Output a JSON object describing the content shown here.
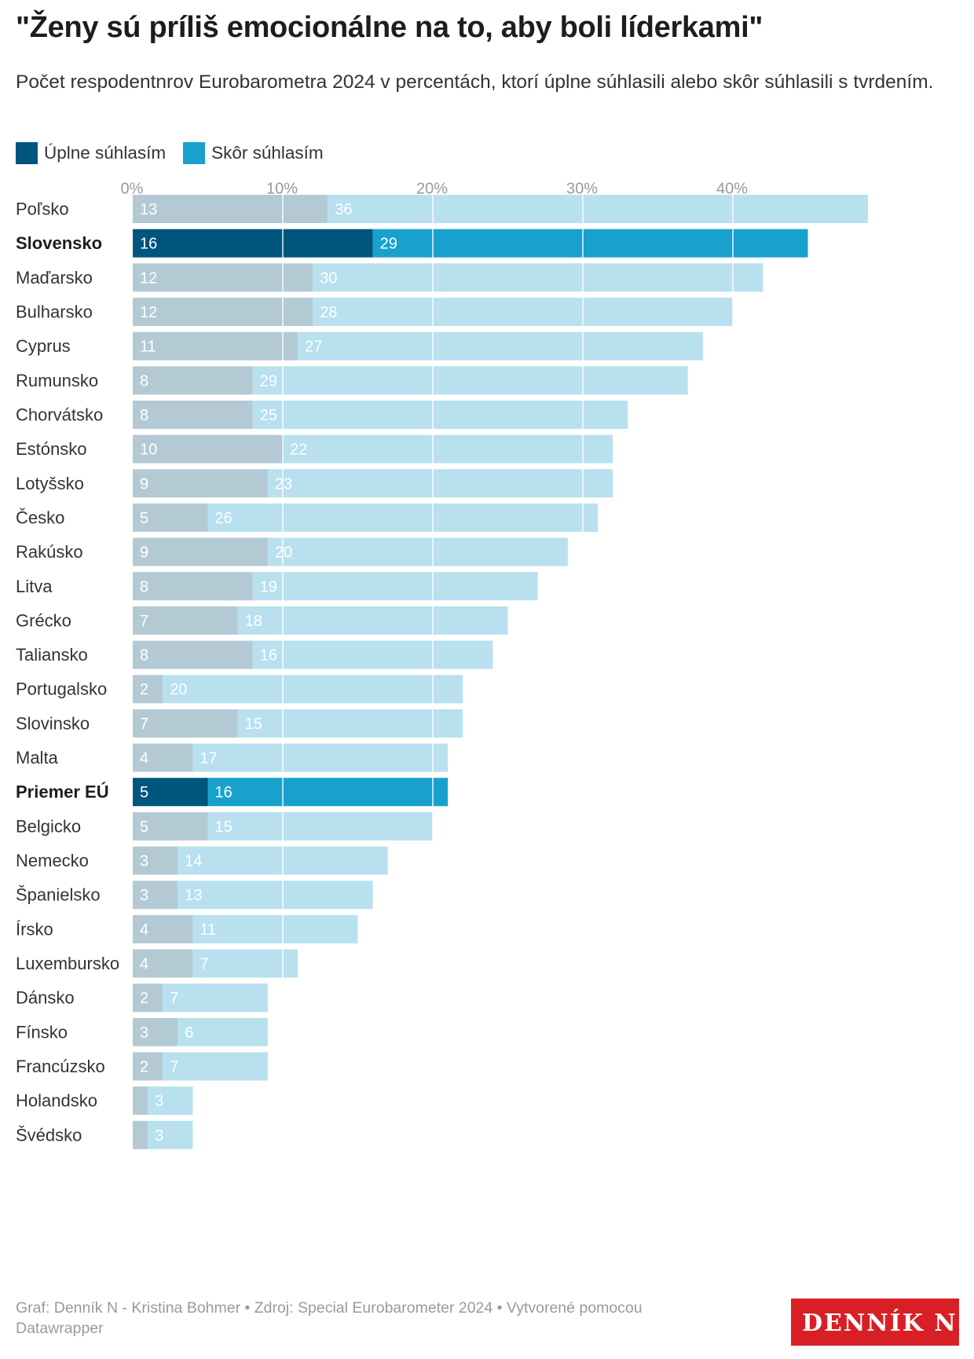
{
  "title": "\"Ženy sú príliš emocionálne na to, aby boli líderkami\"",
  "subtitle": "Počet respodentnrov Eurobarometra 2024 v percentách, ktorí úplne súhlasili alebo skôr súhlasili s tvrdením.",
  "legend": [
    {
      "label": "Úplne súhlasím",
      "color": "#00557f"
    },
    {
      "label": "Skôr súhlasím",
      "color": "#18a1cd"
    }
  ],
  "footer": "Graf: Denník N - Kristina Bohmer • Zdroj: Special Eurobarometer 2024 • Vytvorené pomocou Datawrapper",
  "logo": "DENNÍK N",
  "chart_data": {
    "type": "bar",
    "orientation": "horizontal",
    "stacked": true,
    "xlim": [
      0,
      49
    ],
    "xticks": [
      0,
      10,
      20,
      30,
      40
    ],
    "xtick_labels": [
      "0%",
      "10%",
      "20%",
      "30%",
      "40%"
    ],
    "grid": true,
    "legend_position": "top-left",
    "categories": [
      "Poľsko",
      "Slovensko",
      "Maďarsko",
      "Bulharsko",
      "Cyprus",
      "Rumunsko",
      "Chorvátsko",
      "Estónsko",
      "Lotyšsko",
      "Česko",
      "Rakúsko",
      "Litva",
      "Grécko",
      "Taliansko",
      "Portugalsko",
      "Slovinsko",
      "Malta",
      "Priemer EÚ",
      "Belgicko",
      "Nemecko",
      "Španielsko",
      "Írsko",
      "Luxembursko",
      "Dánsko",
      "Fínsko",
      "Francúzsko",
      "Holandsko",
      "Švédsko"
    ],
    "highlighted": [
      "Slovensko",
      "Priemer EÚ"
    ],
    "muted_colors": [
      "#b3cad5",
      "#b8e0ef"
    ],
    "series": [
      {
        "name": "Úplne súhlasím",
        "color": "#00557f",
        "values": [
          13,
          16,
          12,
          12,
          11,
          8,
          8,
          10,
          9,
          5,
          9,
          8,
          7,
          8,
          2,
          7,
          4,
          5,
          5,
          3,
          3,
          4,
          4,
          2,
          3,
          2,
          1,
          1
        ]
      },
      {
        "name": "Skôr súhlasím",
        "color": "#18a1cd",
        "values": [
          36,
          29,
          30,
          28,
          27,
          29,
          25,
          22,
          23,
          26,
          20,
          19,
          18,
          16,
          20,
          15,
          17,
          16,
          15,
          14,
          13,
          11,
          7,
          7,
          6,
          7,
          3,
          3
        ]
      }
    ],
    "data_labels": {
      "Úplne súhlasím": [
        "13",
        "16",
        "12",
        "12",
        "11",
        "8",
        "8",
        "10",
        "9",
        "5",
        "9",
        "8",
        "7",
        "8",
        "2",
        "7",
        "4",
        "5",
        "5",
        "3",
        "3",
        "4",
        "4",
        "2",
        "3",
        "2",
        "",
        ""
      ],
      "Skôr súhlasím": [
        "36",
        "29",
        "30",
        "28",
        "27",
        "29",
        "25",
        "22",
        "23",
        "26",
        "20",
        "19",
        "18",
        "16",
        "20",
        "15",
        "17",
        "16",
        "15",
        "14",
        "13",
        "11",
        "7",
        "7",
        "6",
        "7",
        "3",
        "3"
      ]
    }
  }
}
